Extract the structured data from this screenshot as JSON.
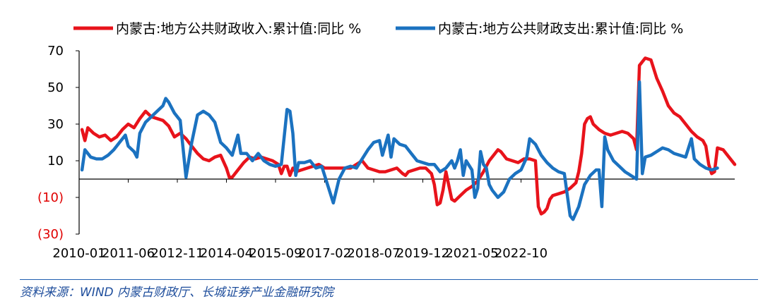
{
  "chart_data": {
    "type": "line",
    "title": "",
    "xlabel": "",
    "ylabel": "",
    "ylim": [
      -30,
      70
    ],
    "y_ticks": [
      70,
      50,
      30,
      10,
      -10,
      -30
    ],
    "y_tick_labels": [
      "70",
      "50",
      "30",
      "10",
      "(10)",
      "(30)"
    ],
    "x_tick_labels": [
      "2010-01",
      "2011-06",
      "2012-11",
      "2014-04",
      "2015-09",
      "2017-02",
      "2018-07",
      "2019-12",
      "2021-05",
      "2022-10"
    ],
    "grid": false,
    "legend_position": "top",
    "series": [
      {
        "name": "内蒙古:地方公共财政收入:累计值:同比 %",
        "color": "#e8131b",
        "points": [
          [
            "2010-02",
            27
          ],
          [
            "2010-03",
            21
          ],
          [
            "2010-04",
            28
          ],
          [
            "2010-06",
            25
          ],
          [
            "2010-08",
            23
          ],
          [
            "2010-10",
            24
          ],
          [
            "2010-12",
            21
          ],
          [
            "2011-02",
            23
          ],
          [
            "2011-04",
            27
          ],
          [
            "2011-06",
            30
          ],
          [
            "2011-08",
            28
          ],
          [
            "2011-10",
            33
          ],
          [
            "2011-12",
            37
          ],
          [
            "2012-02",
            34
          ],
          [
            "2012-04",
            33
          ],
          [
            "2012-06",
            32
          ],
          [
            "2012-08",
            29
          ],
          [
            "2012-10",
            23
          ],
          [
            "2012-12",
            25
          ],
          [
            "2013-02",
            22
          ],
          [
            "2013-04",
            18
          ],
          [
            "2013-06",
            14
          ],
          [
            "2013-08",
            11
          ],
          [
            "2013-10",
            10
          ],
          [
            "2013-12",
            12
          ],
          [
            "2014-02",
            13
          ],
          [
            "2014-04",
            6
          ],
          [
            "2014-05",
            1
          ],
          [
            "2014-06",
            1
          ],
          [
            "2014-08",
            5
          ],
          [
            "2014-10",
            9
          ],
          [
            "2014-12",
            12
          ],
          [
            "2015-02",
            11
          ],
          [
            "2015-04",
            12
          ],
          [
            "2015-06",
            11
          ],
          [
            "2015-08",
            10
          ],
          [
            "2015-10",
            8
          ],
          [
            "2015-11",
            3
          ],
          [
            "2015-12",
            7
          ],
          [
            "2016-01",
            7
          ],
          [
            "2016-02",
            2
          ],
          [
            "2016-03",
            6
          ],
          [
            "2016-04",
            4
          ],
          [
            "2016-06",
            5
          ],
          [
            "2016-08",
            6
          ],
          [
            "2016-10",
            7
          ],
          [
            "2016-12",
            8
          ],
          [
            "2017-02",
            6
          ],
          [
            "2017-04",
            6
          ],
          [
            "2017-05",
            6
          ],
          [
            "2017-07",
            6
          ],
          [
            "2017-09",
            6
          ],
          [
            "2017-11",
            6
          ],
          [
            "2018-01",
            8
          ],
          [
            "2018-03",
            10
          ],
          [
            "2018-05",
            6
          ],
          [
            "2018-07",
            5
          ],
          [
            "2018-09",
            4
          ],
          [
            "2018-11",
            4
          ],
          [
            "2019-01",
            5
          ],
          [
            "2019-03",
            6
          ],
          [
            "2019-05",
            3
          ],
          [
            "2019-06",
            2
          ],
          [
            "2019-07",
            4
          ],
          [
            "2019-09",
            5
          ],
          [
            "2019-11",
            6
          ],
          [
            "2020-01",
            6
          ],
          [
            "2020-03",
            3
          ],
          [
            "2020-04",
            -3
          ],
          [
            "2020-05",
            -14
          ],
          [
            "2020-06",
            -13
          ],
          [
            "2020-07",
            -6
          ],
          [
            "2020-08",
            4
          ],
          [
            "2020-10",
            -11
          ],
          [
            "2020-11",
            -12
          ],
          [
            "2021-01",
            -9
          ],
          [
            "2021-03",
            -6
          ],
          [
            "2021-05",
            -4
          ],
          [
            "2021-07",
            -1
          ],
          [
            "2021-09",
            4
          ],
          [
            "2021-11",
            10
          ],
          [
            "2022-01",
            14
          ],
          [
            "2022-02",
            16
          ],
          [
            "2022-03",
            15
          ],
          [
            "2022-05",
            11
          ],
          [
            "2022-07",
            10
          ],
          [
            "2022-09",
            9
          ],
          [
            "2022-11",
            11
          ],
          [
            "2023-01",
            11
          ],
          [
            "2023-03",
            10
          ],
          [
            "2023-04",
            -15
          ],
          [
            "2023-05",
            -19
          ],
          [
            "2023-06",
            -18
          ],
          [
            "2023-07",
            -16
          ],
          [
            "2023-08",
            -11
          ],
          [
            "2023-09",
            -9
          ],
          [
            "2023-11",
            -8
          ],
          [
            "2024-01",
            -7
          ],
          [
            "2024-03",
            -5
          ],
          [
            "2024-05",
            -2
          ],
          [
            "2024-06",
            4
          ],
          [
            "2024-07",
            14
          ],
          [
            "2024-08",
            30
          ],
          [
            "2024-09",
            33
          ],
          [
            "2024-10",
            34
          ],
          [
            "2024-11",
            30
          ],
          [
            "2025-01",
            27
          ],
          [
            "2025-03",
            25
          ],
          [
            "2025-05",
            24
          ],
          [
            "2025-07",
            25
          ],
          [
            "2025-09",
            26
          ],
          [
            "2025-11",
            25
          ],
          [
            "2026-01",
            22
          ],
          [
            "2026-02",
            16
          ],
          [
            "2026-03",
            62
          ],
          [
            "2026-05",
            66
          ],
          [
            "2026-07",
            65
          ],
          [
            "2026-09",
            55
          ],
          [
            "2026-11",
            48
          ],
          [
            "2027-01",
            40
          ],
          [
            "2027-03",
            36
          ],
          [
            "2027-05",
            34
          ],
          [
            "2027-07",
            30
          ],
          [
            "2027-09",
            26
          ],
          [
            "2027-11",
            23
          ],
          [
            "2028-01",
            21
          ],
          [
            "2028-02",
            18
          ],
          [
            "2028-03",
            8
          ],
          [
            "2028-04",
            3
          ],
          [
            "2028-05",
            4
          ],
          [
            "2028-06",
            17
          ],
          [
            "2028-08",
            16
          ],
          [
            "2028-10",
            12
          ],
          [
            "2028-12",
            8
          ]
        ]
      },
      {
        "name": "内蒙古:地方公共财政支出:累计值:同比 %",
        "color": "#1b72c0",
        "points": [
          [
            "2010-02",
            5
          ],
          [
            "2010-03",
            16
          ],
          [
            "2010-05",
            12
          ],
          [
            "2010-07",
            11
          ],
          [
            "2010-09",
            11
          ],
          [
            "2010-11",
            13
          ],
          [
            "2011-01",
            16
          ],
          [
            "2011-03",
            20
          ],
          [
            "2011-05",
            24
          ],
          [
            "2011-06",
            18
          ],
          [
            "2011-08",
            15
          ],
          [
            "2011-09",
            12
          ],
          [
            "2011-10",
            25
          ],
          [
            "2011-12",
            31
          ],
          [
            "2012-02",
            34
          ],
          [
            "2012-04",
            37
          ],
          [
            "2012-06",
            40
          ],
          [
            "2012-07",
            44
          ],
          [
            "2012-08",
            42
          ],
          [
            "2012-10",
            36
          ],
          [
            "2012-12",
            32
          ],
          [
            "2013-02",
            1
          ],
          [
            "2013-04",
            20
          ],
          [
            "2013-06",
            35
          ],
          [
            "2013-08",
            37
          ],
          [
            "2013-10",
            35
          ],
          [
            "2013-12",
            31
          ],
          [
            "2014-02",
            20
          ],
          [
            "2014-04",
            17
          ],
          [
            "2014-06",
            13
          ],
          [
            "2014-08",
            24
          ],
          [
            "2014-09",
            14
          ],
          [
            "2014-11",
            14
          ],
          [
            "2015-01",
            10
          ],
          [
            "2015-03",
            14
          ],
          [
            "2015-05",
            10
          ],
          [
            "2015-07",
            8
          ],
          [
            "2015-09",
            7
          ],
          [
            "2015-11",
            8
          ],
          [
            "2016-01",
            38
          ],
          [
            "2016-02",
            37
          ],
          [
            "2016-03",
            25
          ],
          [
            "2016-04",
            2
          ],
          [
            "2016-05",
            9
          ],
          [
            "2016-07",
            9
          ],
          [
            "2016-09",
            10
          ],
          [
            "2016-11",
            6
          ],
          [
            "2017-01",
            7
          ],
          [
            "2017-03",
            -3
          ],
          [
            "2017-05",
            -13
          ],
          [
            "2017-07",
            0
          ],
          [
            "2017-09",
            6
          ],
          [
            "2017-11",
            7
          ],
          [
            "2018-01",
            6
          ],
          [
            "2018-03",
            11
          ],
          [
            "2018-05",
            16
          ],
          [
            "2018-07",
            20
          ],
          [
            "2018-09",
            21
          ],
          [
            "2018-10",
            13
          ],
          [
            "2018-12",
            24
          ],
          [
            "2019-01",
            12
          ],
          [
            "2019-02",
            22
          ],
          [
            "2019-04",
            19
          ],
          [
            "2019-06",
            18
          ],
          [
            "2019-08",
            14
          ],
          [
            "2019-10",
            10
          ],
          [
            "2019-12",
            9
          ],
          [
            "2020-02",
            8
          ],
          [
            "2020-04",
            8
          ],
          [
            "2020-06",
            4
          ],
          [
            "2020-08",
            6
          ],
          [
            "2020-10",
            10
          ],
          [
            "2020-11",
            6
          ],
          [
            "2020-12",
            10
          ],
          [
            "2021-01",
            16
          ],
          [
            "2021-02",
            2
          ],
          [
            "2021-03",
            10
          ],
          [
            "2021-05",
            5
          ],
          [
            "2021-06",
            -10
          ],
          [
            "2021-07",
            -5
          ],
          [
            "2021-08",
            15
          ],
          [
            "2021-09",
            8
          ],
          [
            "2021-10",
            6
          ],
          [
            "2021-11",
            -3
          ],
          [
            "2021-12",
            -6
          ],
          [
            "2022-02",
            -10
          ],
          [
            "2022-04",
            -7
          ],
          [
            "2022-06",
            0
          ],
          [
            "2022-08",
            3
          ],
          [
            "2022-10",
            5
          ],
          [
            "2022-12",
            12
          ],
          [
            "2023-01",
            22
          ],
          [
            "2023-03",
            19
          ],
          [
            "2023-05",
            13
          ],
          [
            "2023-07",
            9
          ],
          [
            "2023-09",
            6
          ],
          [
            "2023-11",
            4
          ],
          [
            "2024-01",
            3
          ],
          [
            "2024-03",
            -20
          ],
          [
            "2024-04",
            -22
          ],
          [
            "2024-06",
            -15
          ],
          [
            "2024-08",
            -3
          ],
          [
            "2024-10",
            2
          ],
          [
            "2024-12",
            5
          ],
          [
            "2025-01",
            5
          ],
          [
            "2025-02",
            -15
          ],
          [
            "2025-03",
            23
          ],
          [
            "2025-04",
            16
          ],
          [
            "2025-06",
            10
          ],
          [
            "2025-08",
            7
          ],
          [
            "2025-10",
            4
          ],
          [
            "2025-12",
            2
          ],
          [
            "2026-02",
            0
          ],
          [
            "2026-03",
            53
          ],
          [
            "2026-04",
            3
          ],
          [
            "2026-05",
            12
          ],
          [
            "2026-07",
            13
          ],
          [
            "2026-09",
            15
          ],
          [
            "2026-11",
            17
          ],
          [
            "2027-01",
            16
          ],
          [
            "2027-03",
            14
          ],
          [
            "2027-05",
            13
          ],
          [
            "2027-07",
            12
          ],
          [
            "2027-09",
            22
          ],
          [
            "2027-10",
            11
          ],
          [
            "2027-12",
            8
          ],
          [
            "2028-02",
            6
          ],
          [
            "2028-04",
            5
          ],
          [
            "2028-06",
            6
          ]
        ]
      }
    ]
  },
  "source": "资料来源：WIND 内蒙古财政厅、长城证券产业金融研究院"
}
